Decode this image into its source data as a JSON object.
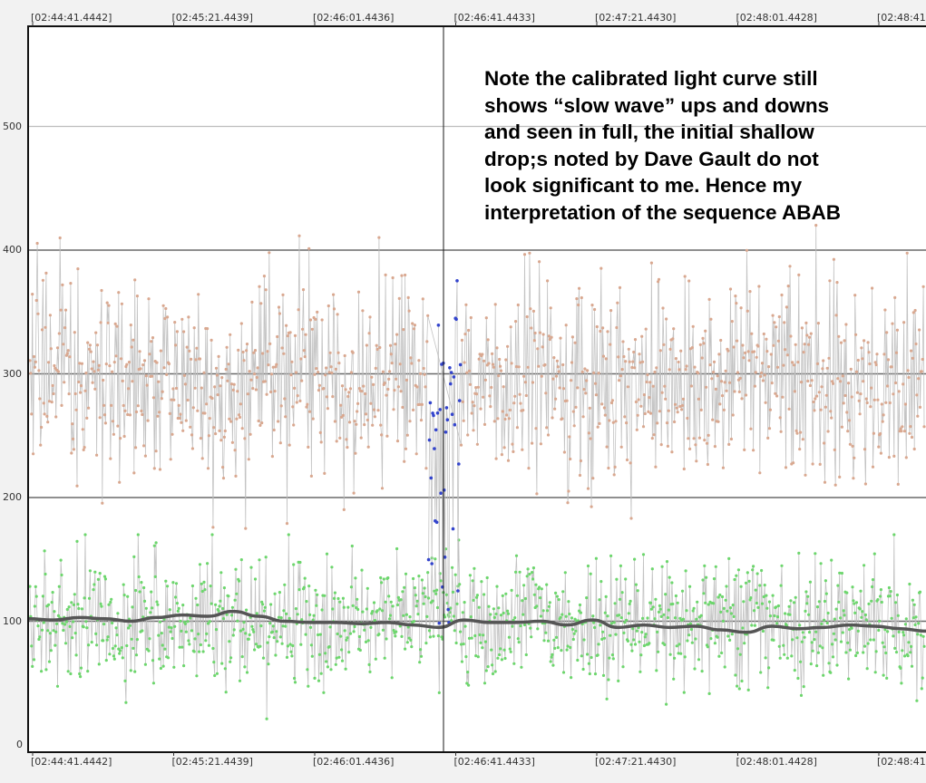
{
  "chart_data": {
    "type": "scatter",
    "title": "",
    "xlabel": "",
    "ylabel": "",
    "x_tick_labels": [
      "[02:44:41.4442]",
      "[02:45:21.4439]",
      "[02:46:01.4436]",
      "[02:46:41.4433]",
      "[02:47:21.4430]",
      "[02:48:01.4428]",
      "[02:48:41"
    ],
    "y_ticks": [
      0,
      100,
      200,
      300,
      400,
      500
    ],
    "ylim": [
      0,
      580
    ],
    "grid": true,
    "legend": "none",
    "colors": {
      "target_series": "#d9a890",
      "event_points": "#3344cc",
      "comparison_series": "#6dd66d",
      "trend_line": "#555555",
      "connector": "#bdbdbd",
      "cursor": "#1a1a1a",
      "grid_major": "#6a6a6a",
      "grid_minor": "#bdbdbd"
    },
    "series": [
      {
        "values": {
          "mean": 295,
          "spread": 40,
          "range": [
            175,
            425
          ]
        }
      },
      {
        "values": {
          "mean": 245,
          "range": [
            30,
            378
          ],
          "x_range": [
            "[02:46:36.2]",
            "[02:46:42.6]"
          ]
        }
      },
      {
        "values": {
          "mean": 100,
          "spread": 25,
          "range": [
            13,
            170
          ]
        }
      },
      {
        "values": [
          102,
          101,
          103,
          102,
          100,
          103,
          105,
          104,
          108,
          104,
          100,
          99,
          99,
          98,
          99,
          97,
          95,
          101,
          99,
          99,
          100,
          97,
          101,
          95,
          97,
          95,
          96,
          93,
          91,
          96,
          94,
          95,
          97,
          96,
          94,
          92
        ]
      }
    ],
    "annotation": "Note the calibrated light curve still\nshows “slow wave” ups and downs\nand seen in full, the initial shallow\ndrop;s noted by Dave Gault do not\nlook significant to me. Hence my\ninterpretation of the sequence ABAB"
  }
}
